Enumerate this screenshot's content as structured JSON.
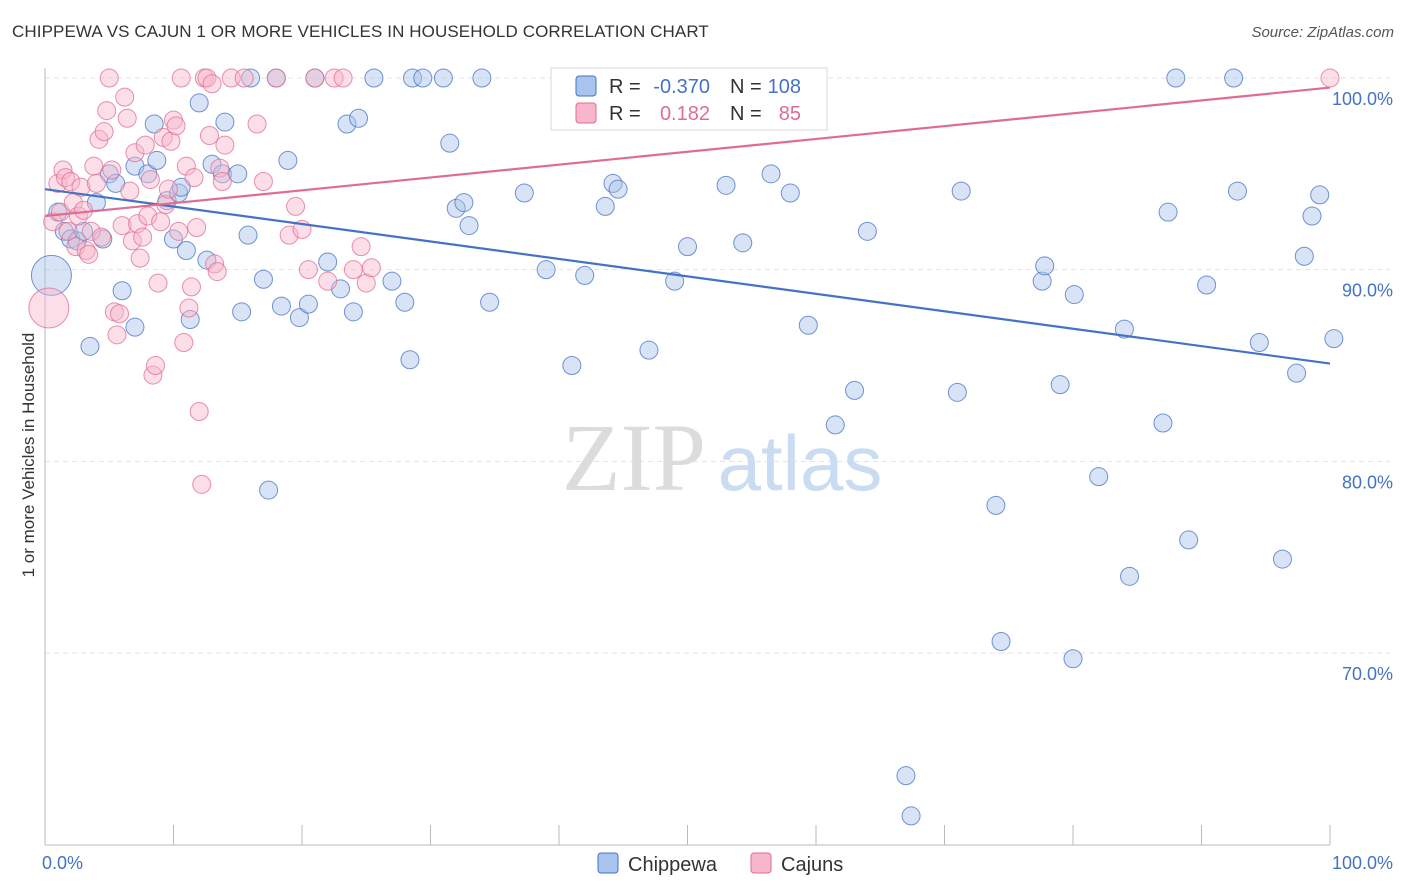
{
  "title": "CHIPPEWA VS CAJUN 1 OR MORE VEHICLES IN HOUSEHOLD CORRELATION CHART",
  "source": "Source: ZipAtlas.com",
  "watermark": {
    "zip": "ZIP",
    "atlas": "atlas"
  },
  "legend": {
    "rows": [
      {
        "r_label": "R =",
        "r_value": "-0.370",
        "n_label": "N =",
        "n_value": "108",
        "color": "#4472c4",
        "fill": "#a9c4ec"
      },
      {
        "r_label": "R =",
        "r_value": "0.182",
        "n_label": "N =",
        "n_value": "85",
        "color": "#e06c92",
        "fill": "#f7b6cb"
      }
    ]
  },
  "bottom_legend": [
    {
      "label": "Chippewa",
      "color": "#4472c4",
      "fill": "#a9c4ec"
    },
    {
      "label": "Cajuns",
      "color": "#e06c92",
      "fill": "#f7b6cb"
    }
  ],
  "chart_data": {
    "type": "scatter",
    "title": "CHIPPEWA VS CAJUN 1 OR MORE VEHICLES IN HOUSEHOLD CORRELATION CHART",
    "xlabel": "",
    "ylabel": "1 or more Vehicles in Household",
    "xlim": [
      0,
      100
    ],
    "ylim": [
      60.5,
      101.5
    ],
    "x_tick_labels": [
      "0.0%",
      "100.0%"
    ],
    "y_ticks": [
      70,
      80,
      90,
      100
    ],
    "y_tick_labels": [
      "70.0%",
      "80.0%",
      "90.0%",
      "100.0%"
    ],
    "grid": true,
    "legend_position": "top-center",
    "series": [
      {
        "name": "Chippewa",
        "color": "#4472c4",
        "trend": {
          "x": [
            0,
            100
          ],
          "y": [
            94.2,
            85.1
          ]
        },
        "points": [
          [
            0.5,
            89.7
          ],
          [
            1,
            93
          ],
          [
            1.5,
            92
          ],
          [
            2,
            91.6
          ],
          [
            2.5,
            91.5
          ],
          [
            3,
            92
          ],
          [
            3.5,
            86
          ],
          [
            4,
            93.5
          ],
          [
            4.5,
            91.6
          ],
          [
            5,
            95
          ],
          [
            5.5,
            94.5
          ],
          [
            6,
            88.9
          ],
          [
            7,
            87
          ],
          [
            7,
            95.4
          ],
          [
            8,
            95
          ],
          [
            8.5,
            97.6
          ],
          [
            8.7,
            95.7
          ],
          [
            9.5,
            93.6
          ],
          [
            10,
            91.6
          ],
          [
            10.4,
            94
          ],
          [
            10.6,
            94.3
          ],
          [
            11,
            91
          ],
          [
            11.3,
            87.4
          ],
          [
            12,
            98.7
          ],
          [
            12.6,
            90.5
          ],
          [
            13,
            95.5
          ],
          [
            13.8,
            95
          ],
          [
            14,
            97.7
          ],
          [
            15,
            95
          ],
          [
            15.3,
            87.8
          ],
          [
            15.8,
            91.8
          ],
          [
            16,
            100
          ],
          [
            17,
            89.5
          ],
          [
            17.4,
            78.5
          ],
          [
            18,
            100
          ],
          [
            18.4,
            88.1
          ],
          [
            18.9,
            95.7
          ],
          [
            19.8,
            87.5
          ],
          [
            20.5,
            88.2
          ],
          [
            21,
            100
          ],
          [
            22,
            90.4
          ],
          [
            23,
            89
          ],
          [
            23.5,
            97.6
          ],
          [
            24,
            87.8
          ],
          [
            24.4,
            97.9
          ],
          [
            25.6,
            100
          ],
          [
            27,
            89.4
          ],
          [
            28,
            88.3
          ],
          [
            28.4,
            85.3
          ],
          [
            28.6,
            100
          ],
          [
            29.4,
            100
          ],
          [
            31,
            100
          ],
          [
            31.5,
            96.6
          ],
          [
            32,
            93.2
          ],
          [
            32.6,
            93.5
          ],
          [
            33,
            92.3
          ],
          [
            34,
            100
          ],
          [
            34.6,
            88.3
          ],
          [
            37.3,
            94
          ],
          [
            39,
            90
          ],
          [
            41,
            85
          ],
          [
            42,
            89.7
          ],
          [
            43.6,
            93.3
          ],
          [
            44.2,
            94.5
          ],
          [
            44.6,
            94.2
          ],
          [
            45.3,
            100
          ],
          [
            47,
            85.8
          ],
          [
            49,
            89.4
          ],
          [
            50,
            91.2
          ],
          [
            53,
            94.4
          ],
          [
            54.3,
            91.4
          ],
          [
            56.1,
            100
          ],
          [
            56.5,
            95
          ],
          [
            58,
            94
          ],
          [
            59.4,
            87.1
          ],
          [
            61.5,
            81.9
          ],
          [
            63,
            83.7
          ],
          [
            64,
            92
          ],
          [
            67,
            63.6
          ],
          [
            67.4,
            61.5
          ],
          [
            71,
            83.6
          ],
          [
            71.3,
            94.1
          ],
          [
            74,
            77.7
          ],
          [
            74.4,
            70.6
          ],
          [
            77.6,
            89.4
          ],
          [
            77.8,
            90.2
          ],
          [
            79,
            84
          ],
          [
            80,
            69.7
          ],
          [
            80.1,
            88.7
          ],
          [
            82,
            79.2
          ],
          [
            84,
            86.9
          ],
          [
            84.4,
            74
          ],
          [
            87,
            82
          ],
          [
            87.4,
            93
          ],
          [
            88,
            100
          ],
          [
            89,
            75.9
          ],
          [
            90.4,
            89.2
          ],
          [
            92.5,
            100
          ],
          [
            92.8,
            94.1
          ],
          [
            94.5,
            86.2
          ],
          [
            96.3,
            74.9
          ],
          [
            97.4,
            84.6
          ],
          [
            98,
            90.7
          ],
          [
            98.6,
            92.8
          ],
          [
            99.2,
            93.9
          ],
          [
            100.3,
            86.4
          ]
        ]
      },
      {
        "name": "Cajuns",
        "color": "#e06c92",
        "trend": {
          "x": [
            0,
            100
          ],
          "y": [
            92.8,
            99.5
          ]
        },
        "points": [
          [
            0.3,
            88
          ],
          [
            0.6,
            92.5
          ],
          [
            1,
            94.5
          ],
          [
            1.2,
            93
          ],
          [
            1.4,
            95.2
          ],
          [
            1.6,
            94.8
          ],
          [
            1.8,
            92
          ],
          [
            2,
            94.6
          ],
          [
            2.2,
            93.5
          ],
          [
            2.4,
            91.2
          ],
          [
            2.6,
            92.8
          ],
          [
            2.8,
            94.3
          ],
          [
            3,
            93.1
          ],
          [
            3.2,
            91
          ],
          [
            3.4,
            90.8
          ],
          [
            3.6,
            92
          ],
          [
            3.8,
            95.4
          ],
          [
            4,
            94.5
          ],
          [
            4.2,
            96.8
          ],
          [
            4.4,
            91.7
          ],
          [
            4.6,
            97.2
          ],
          [
            4.8,
            98.3
          ],
          [
            5,
            100
          ],
          [
            5.2,
            95.2
          ],
          [
            5.4,
            87.8
          ],
          [
            5.6,
            86.6
          ],
          [
            5.8,
            87.7
          ],
          [
            6,
            92.3
          ],
          [
            6.2,
            99
          ],
          [
            6.4,
            97.9
          ],
          [
            6.6,
            94.1
          ],
          [
            6.8,
            91.5
          ],
          [
            7,
            96.1
          ],
          [
            7.2,
            92.4
          ],
          [
            7.4,
            90.6
          ],
          [
            7.6,
            91.7
          ],
          [
            7.8,
            96.5
          ],
          [
            8,
            92.8
          ],
          [
            8.2,
            94.7
          ],
          [
            8.4,
            84.5
          ],
          [
            8.6,
            85
          ],
          [
            8.8,
            89.3
          ],
          [
            9,
            92.5
          ],
          [
            9.2,
            96.9
          ],
          [
            9.4,
            93.4
          ],
          [
            9.6,
            94.2
          ],
          [
            9.8,
            96.7
          ],
          [
            10,
            97.8
          ],
          [
            10.2,
            97.5
          ],
          [
            10.4,
            92
          ],
          [
            10.6,
            100
          ],
          [
            10.8,
            86.2
          ],
          [
            11,
            95.4
          ],
          [
            11.2,
            88
          ],
          [
            11.4,
            89.1
          ],
          [
            11.6,
            94.8
          ],
          [
            11.8,
            92.2
          ],
          [
            12,
            82.6
          ],
          [
            12.2,
            78.8
          ],
          [
            12.4,
            100
          ],
          [
            12.6,
            100
          ],
          [
            12.8,
            97
          ],
          [
            13,
            99.7
          ],
          [
            13.2,
            90.3
          ],
          [
            13.4,
            89.9
          ],
          [
            13.6,
            95.3
          ],
          [
            13.8,
            94.6
          ],
          [
            14,
            96.5
          ],
          [
            14.5,
            100
          ],
          [
            15.5,
            100
          ],
          [
            16.5,
            97.6
          ],
          [
            17,
            94.6
          ],
          [
            18,
            100
          ],
          [
            19,
            91.8
          ],
          [
            19.5,
            93.3
          ],
          [
            20,
            92.1
          ],
          [
            20.5,
            90
          ],
          [
            21,
            100
          ],
          [
            22,
            89.4
          ],
          [
            22.5,
            100
          ],
          [
            23.2,
            100
          ],
          [
            24,
            90
          ],
          [
            24.6,
            91.2
          ],
          [
            25,
            89.3
          ],
          [
            25.4,
            90.1
          ],
          [
            100,
            100
          ]
        ]
      }
    ]
  }
}
